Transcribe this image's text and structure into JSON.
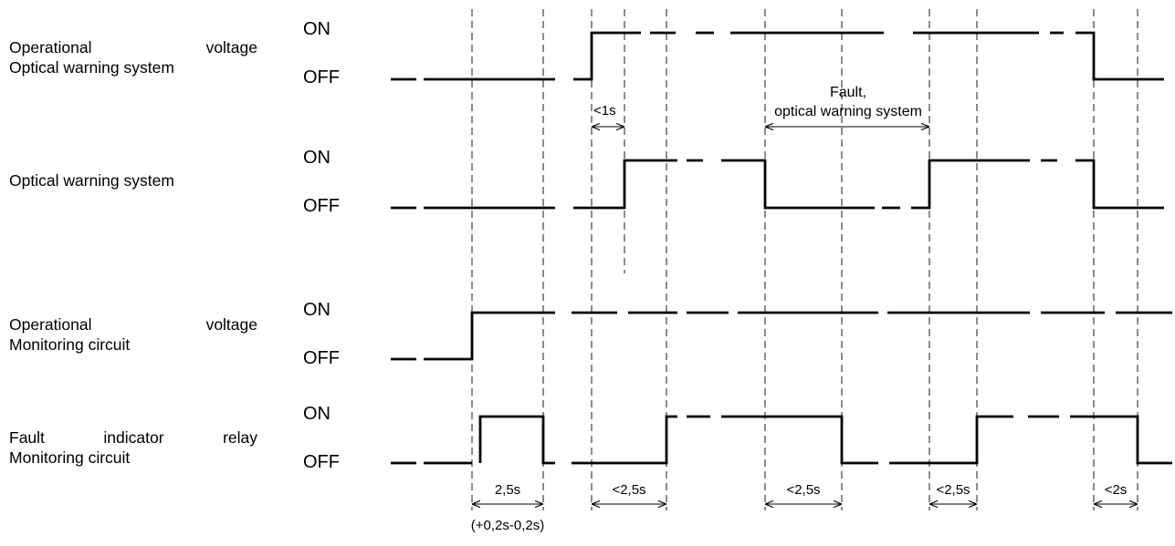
{
  "signals": [
    {
      "id": "opvoltage-ows",
      "line1_words": [
        "Operational",
        "voltage"
      ],
      "line2": "Optical warning system",
      "on_label": "ON",
      "off_label": "OFF"
    },
    {
      "id": "ows",
      "line1_words": [
        "Optical warning system"
      ],
      "line2": "",
      "on_label": "ON",
      "off_label": "OFF"
    },
    {
      "id": "opvoltage-mc",
      "line1_words": [
        "Operational",
        "voltage"
      ],
      "line2": "Monitoring circuit",
      "on_label": "ON",
      "off_label": "OFF"
    },
    {
      "id": "relay",
      "line1_words": [
        "Fault",
        "indicator",
        "relay"
      ],
      "line2": "Monitoring circuit",
      "on_label": "ON",
      "off_label": "OFF"
    }
  ],
  "annotations": {
    "fault_line1": "Fault,",
    "fault_line2": "optical warning system",
    "lt1s": "<1s",
    "t_2_5s": "2,5s",
    "tolerance": "(+0,2s-0,2s)",
    "lt2_5s": "<2,5s",
    "lt2s": "<2s"
  }
}
